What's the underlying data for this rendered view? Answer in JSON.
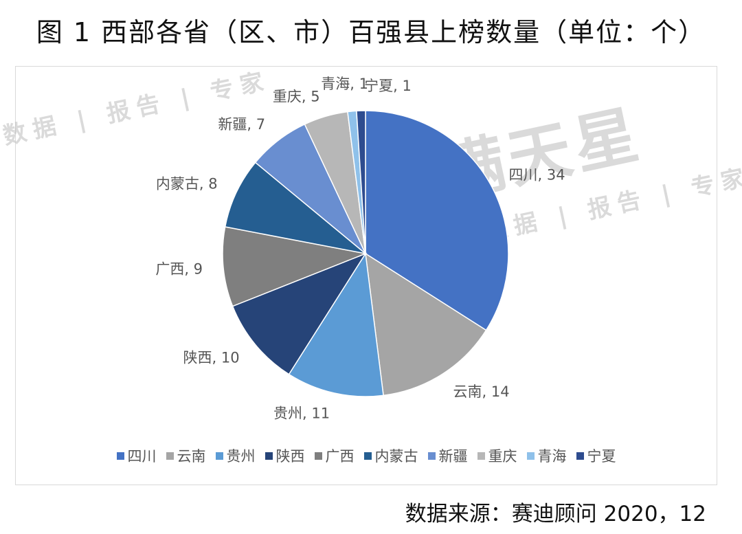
{
  "title": "图 1  西部各省（区、市）百强县上榜数量（单位：个）",
  "source": "数据来源：赛迪顾问  2020，12",
  "watermark": {
    "brand": "满天星",
    "tagline": "数据 | 报告 | 专家"
  },
  "chart_data": {
    "type": "pie",
    "title": "图 1  西部各省（区、市）百强县上榜数量（单位：个）",
    "legend_position": "bottom",
    "categories": [
      "四川",
      "云南",
      "贵州",
      "陕西",
      "广西",
      "内蒙古",
      "新疆",
      "重庆",
      "青海",
      "宁夏"
    ],
    "values": [
      34,
      14,
      11,
      10,
      9,
      8,
      7,
      5,
      1,
      1
    ],
    "labels": [
      "四川, 34",
      "云南, 14",
      "贵州, 11",
      "陕西, 10",
      "广西, 9",
      "内蒙古, 8",
      "新疆, 7",
      "重庆, 5",
      "青海, 1",
      "宁夏, 1"
    ],
    "colors": [
      "#4472C4",
      "#A5A5A5",
      "#5B9BD5",
      "#264478",
      "#7F7F7F",
      "#255E91",
      "#698ED0",
      "#B7B7B7",
      "#8FC1EA",
      "#2E4C8F"
    ]
  }
}
